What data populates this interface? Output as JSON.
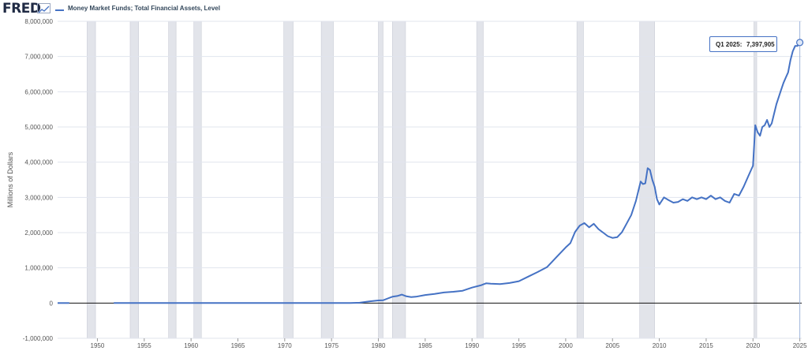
{
  "header": {
    "logo_text": "FRED",
    "logo_icon": "line-graph-icon",
    "legend_label": "Money Market Funds; Total Financial Assets, Level"
  },
  "colors": {
    "series": "#4572c4",
    "recession": "#e2e4ea",
    "grid": "#e1e5ee",
    "axis_text": "#555555"
  },
  "tooltip": {
    "period": "Q1 2025:",
    "value": "7,397,905"
  },
  "chart_data": {
    "type": "line",
    "title": "Money Market Funds; Total Financial Assets, Level",
    "ylabel": "Millions of Dollars",
    "xlabel": "",
    "xlim": [
      1945.75,
      2025.2
    ],
    "ylim": [
      -1000000,
      8000000
    ],
    "grid": "horizontal",
    "x_ticks": [
      1950,
      1955,
      1960,
      1965,
      1970,
      1975,
      1980,
      1985,
      1990,
      1995,
      2000,
      2005,
      2010,
      2015,
      2020,
      2025
    ],
    "x_tick_labels": [
      "1950",
      "1955",
      "1960",
      "1965",
      "1970",
      "1975",
      "1980",
      "1985",
      "1990",
      "1995",
      "2000",
      "2005",
      "2010",
      "2015",
      "2020",
      "2025"
    ],
    "y_ticks": [
      -1000000,
      0,
      1000000,
      2000000,
      3000000,
      4000000,
      5000000,
      6000000,
      7000000,
      8000000
    ],
    "y_tick_labels": [
      "-1,000,000",
      "0",
      "1,000,000",
      "2,000,000",
      "3,000,000",
      "4,000,000",
      "5,000,000",
      "6,000,000",
      "7,000,000",
      "8,000,000"
    ],
    "recessions": [
      [
        1948.9,
        1949.8
      ],
      [
        1953.5,
        1954.4
      ],
      [
        1957.6,
        1958.4
      ],
      [
        1960.3,
        1961.1
      ],
      [
        1969.9,
        1970.9
      ],
      [
        1973.9,
        1975.2
      ],
      [
        1980.0,
        1980.5
      ],
      [
        1981.5,
        1982.9
      ],
      [
        1990.5,
        1991.2
      ],
      [
        2001.2,
        2001.9
      ],
      [
        2007.9,
        2009.5
      ],
      [
        2020.1,
        2020.4
      ]
    ],
    "series": [
      {
        "name": "Money Market Funds; Total Financial Assets, Level",
        "segments": [
          {
            "x": [
              1945.75,
              1947.0
            ],
            "y": [
              0,
              0
            ]
          },
          {
            "x": [
              1951.75,
              1955,
              1960,
              1965,
              1970,
              1973,
              1975,
              1976,
              1977,
              1978,
              1979,
              1980,
              1980.5,
              1981,
              1981.5,
              1982,
              1982.5,
              1983,
              1983.5,
              1984,
              1985,
              1986,
              1987,
              1988,
              1989,
              1990,
              1991,
              1991.5,
              1992,
              1993,
              1994,
              1995,
              1996,
              1997,
              1998,
              1999,
              2000,
              2000.5,
              2001,
              2001.5,
              2002,
              2002.5,
              2003,
              2003.5,
              2004,
              2004.5,
              2005,
              2005.5,
              2006,
              2006.5,
              2007,
              2007.5,
              2008,
              2008.25,
              2008.5,
              2008.75,
              2009,
              2009.25,
              2009.5,
              2009.75,
              2010,
              2010.5,
              2011,
              2011.5,
              2012,
              2012.5,
              2013,
              2013.5,
              2014,
              2014.5,
              2015,
              2015.5,
              2016,
              2016.5,
              2017,
              2017.5,
              2018,
              2018.5,
              2019,
              2019.5,
              2020,
              2020.25,
              2020.5,
              2020.75,
              2021,
              2021.25,
              2021.5,
              2021.75,
              2022,
              2022.5,
              2023,
              2023.25,
              2023.5,
              2023.75,
              2024,
              2024.25,
              2024.5,
              2024.75,
              2025.0
            ],
            "y": [
              0,
              0,
              0,
              0,
              0,
              0,
              3500,
              3600,
              3900,
              10800,
              45000,
              75000,
              80000,
              130000,
              180000,
              200000,
              240000,
              190000,
              170000,
              180000,
              230000,
              260000,
              300000,
              320000,
              350000,
              440000,
              510000,
              560000,
              550000,
              540000,
              570000,
              620000,
              750000,
              880000,
              1020000,
              1300000,
              1580000,
              1700000,
              2020000,
              2200000,
              2270000,
              2150000,
              2250000,
              2100000,
              2000000,
              1900000,
              1850000,
              1870000,
              2010000,
              2250000,
              2500000,
              2900000,
              3450000,
              3380000,
              3400000,
              3830000,
              3780000,
              3500000,
              3300000,
              2950000,
              2800000,
              3000000,
              2920000,
              2850000,
              2870000,
              2950000,
              2900000,
              3000000,
              2950000,
              3000000,
              2950000,
              3050000,
              2950000,
              3000000,
              2900000,
              2850000,
              3100000,
              3050000,
              3300000,
              3600000,
              3900000,
              5050000,
              4850000,
              4750000,
              5000000,
              5050000,
              5200000,
              5000000,
              5100000,
              5650000,
              6050000,
              6250000,
              6400000,
              6550000,
              6900000,
              7150000,
              7300000,
              7300000,
              7397905
            ]
          }
        ]
      }
    ]
  }
}
